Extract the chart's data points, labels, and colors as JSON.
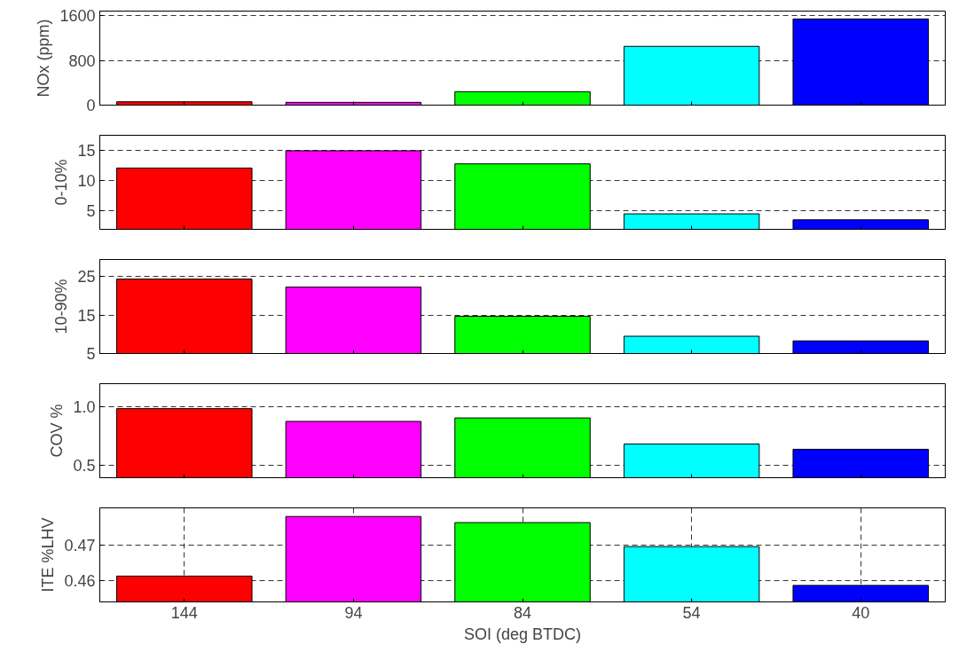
{
  "chart_data": [
    {
      "type": "bar",
      "ylabel": "NOx (ppm)",
      "categories": [
        "144",
        "94",
        "84",
        "54",
        "40"
      ],
      "values": [
        60,
        50,
        240,
        1050,
        1540
      ],
      "colors": [
        "#ff0000",
        "#ff00ff",
        "#00ff00",
        "#00ffff",
        "#0000ff"
      ],
      "ylim": [
        0,
        1680
      ],
      "yticks": [
        0,
        800,
        1600
      ],
      "grid": "y",
      "tick_labels": "y"
    },
    {
      "type": "bar",
      "ylabel": "0-10%",
      "categories": [
        "144",
        "94",
        "84",
        "54",
        "40"
      ],
      "values": [
        12.1,
        15.0,
        12.8,
        4.4,
        3.4
      ],
      "colors": [
        "#ff0000",
        "#ff00ff",
        "#00ff00",
        "#00ffff",
        "#0000ff"
      ],
      "ylim": [
        1.8,
        17.6
      ],
      "yticks": [
        5,
        10,
        15
      ],
      "grid": "y",
      "tick_labels": "y"
    },
    {
      "type": "bar",
      "ylabel": "10-90%",
      "categories": [
        "144",
        "94",
        "84",
        "54",
        "40"
      ],
      "values": [
        24.4,
        22.3,
        14.7,
        9.5,
        8.3
      ],
      "colors": [
        "#ff0000",
        "#ff00ff",
        "#00ff00",
        "#00ffff",
        "#0000ff"
      ],
      "ylim": [
        5,
        29.5
      ],
      "yticks": [
        5,
        15,
        25
      ],
      "grid": "y",
      "tick_labels": "y"
    },
    {
      "type": "bar",
      "ylabel": "COV %",
      "categories": [
        "144",
        "94",
        "84",
        "54",
        "40"
      ],
      "values": [
        0.985,
        0.875,
        0.905,
        0.68,
        0.635
      ],
      "colors": [
        "#ff0000",
        "#ff00ff",
        "#00ff00",
        "#00ffff",
        "#0000ff"
      ],
      "ylim": [
        0.39,
        1.2
      ],
      "yticks": [
        {
          "value": 0.5,
          "label": "0.5"
        },
        {
          "value": 1.0,
          "label": "1.0"
        }
      ],
      "grid": "y",
      "tick_labels": "y"
    },
    {
      "type": "bar",
      "ylabel": "ITE %LHV",
      "xlabel": "SOI (deg BTDC)",
      "categories": [
        "144",
        "94",
        "84",
        "54",
        "40"
      ],
      "values": [
        0.4613,
        0.4779,
        0.4762,
        0.4695,
        0.4587
      ],
      "colors": [
        "#ff0000",
        "#ff00ff",
        "#00ff00",
        "#00ffff",
        "#0000ff"
      ],
      "ylim": [
        0.4541,
        0.4803
      ],
      "yticks": [
        0.46,
        0.47
      ],
      "grid": true
    }
  ]
}
